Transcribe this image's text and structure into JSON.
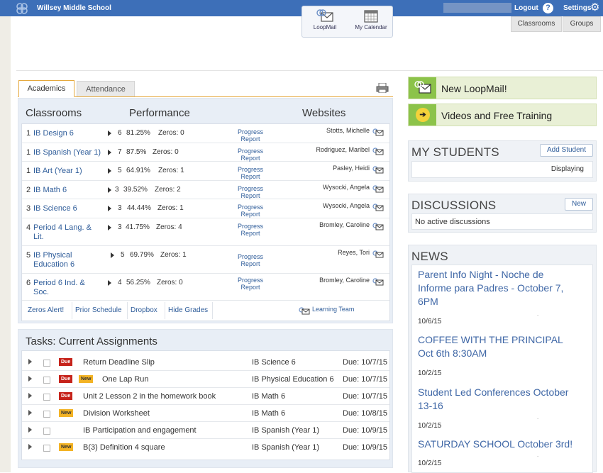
{
  "topbar": {
    "school_name": "Willsey Middle School",
    "logout": "Logout",
    "help": "?",
    "settings": "Settings"
  },
  "quicklinks": {
    "loopmail": "LoopMail",
    "calendar": "My Calendar"
  },
  "nav_tabs": [
    "Classrooms",
    "Groups"
  ],
  "tabs": {
    "academics": "Academics",
    "attendance": "Attendance"
  },
  "classrooms": {
    "headers": {
      "classrooms": "Classrooms",
      "performance": "Performance",
      "websites": "Websites"
    },
    "progress_line1": "Progress",
    "progress_line2": "Report",
    "rows": [
      {
        "period": "1",
        "name": "IB Design 6",
        "count": "6",
        "percent": "81.25%",
        "zeros": "Zeros: 0",
        "teacher": "Stotts, Michelle"
      },
      {
        "period": "1",
        "name": "IB Spanish (Year 1)",
        "count": "7",
        "percent": "87.5%",
        "zeros": "Zeros: 0",
        "teacher": "Rodriguez, Maribel"
      },
      {
        "period": "1",
        "name": "IB Art (Year 1)",
        "count": "5",
        "percent": "64.91%",
        "zeros": "Zeros: 1",
        "teacher": "Pasley, Heidi"
      },
      {
        "period": "2",
        "name": "IB Math 6",
        "count": "3",
        "percent": "39.52%",
        "zeros": "Zeros: 2",
        "teacher": "Wysocki, Angela"
      },
      {
        "period": "3",
        "name": "IB Science 6",
        "count": "3",
        "percent": "44.44%",
        "zeros": "Zeros: 1",
        "teacher": "Wysocki, Angela"
      },
      {
        "period": "4",
        "name": "Period 4 Lang. & Lit.",
        "count": "3",
        "percent": "41.75%",
        "zeros": "Zeros: 4",
        "teacher": "Bromley, Caroline"
      },
      {
        "period": "5",
        "name": "IB Physical Education 6",
        "count": "5",
        "percent": "69.79%",
        "zeros": "Zeros: 1",
        "teacher": "Reyes, Tori"
      },
      {
        "period": "6",
        "name": "Period 6 Ind. & Soc.",
        "count": "4",
        "percent": "56.25%",
        "zeros": "Zeros: 0",
        "teacher": "Bromley, Caroline"
      }
    ],
    "links": [
      "Zeros Alert!",
      "Prior Schedule",
      "Dropbox",
      "Hide Grades"
    ],
    "learning_team": "Learning Team"
  },
  "tasks": {
    "title": "Tasks: Current Assignments",
    "badge_due": "Due",
    "badge_new": "New",
    "rows": [
      {
        "due": true,
        "new": false,
        "title": "Return Deadline Slip",
        "class": "IB Science 6",
        "date": "Due:  10/7/15"
      },
      {
        "due": true,
        "new": true,
        "title": "One Lap Run",
        "class": "IB Physical Education 6",
        "date": "Due:  10/7/15"
      },
      {
        "due": true,
        "new": false,
        "title": "Unit 2 Lesson 2 in the homework book",
        "class": "IB Math 6",
        "date": "Due:  10/7/15"
      },
      {
        "due": false,
        "new": true,
        "title": "Division Worksheet",
        "class": "IB Math 6",
        "date": "Due:  10/8/15"
      },
      {
        "due": false,
        "new": false,
        "title": "IB Participation and engagement",
        "class": "IB Spanish (Year 1)",
        "date": "Due:  10/9/15"
      },
      {
        "due": false,
        "new": true,
        "title": "B(3) Definition 4 square",
        "class": "IB Spanish (Year 1)",
        "date": "Due:  10/9/15"
      }
    ]
  },
  "right": {
    "new_loopmail": "New LoopMail!",
    "videos": "Videos and Free Training",
    "my_students": {
      "title": "MY STUDENTS",
      "button": "Add Student",
      "displaying": "Displaying"
    },
    "discussions": {
      "title": "DISCUSSIONS",
      "button": "New",
      "empty": "No active discussions"
    },
    "news": {
      "title": "NEWS",
      "items": [
        {
          "title": "Parent Info Night - Noche de Informe para Padres - October 7, 6PM",
          "date": "10/6/15"
        },
        {
          "title": "COFFEE WITH THE PRINCIPAL Oct 6th 8:30AM",
          "date": "10/2/15"
        },
        {
          "title": "Student Led Conferences October 13-16",
          "date": "10/2/15"
        },
        {
          "title": "SATURDAY SCHOOL October 3rd!",
          "date": "10/2/15"
        }
      ]
    }
  },
  "colors": {
    "topbar": "#3d6fb8",
    "link": "#2f5d9a",
    "tab_accent": "#e5a93e",
    "due": "#c6231b",
    "new": "#f3b325",
    "green": "#8cc34a"
  }
}
